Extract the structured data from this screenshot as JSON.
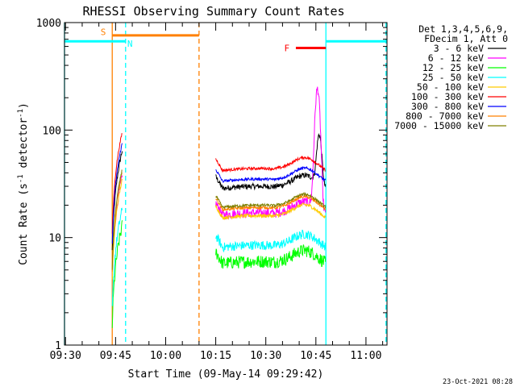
{
  "chart_data": {
    "type": "line",
    "title": "RHESSI Observing Summary Count Rates",
    "xlabel": "Start Time (09-May-14 09:29:42)",
    "ylabel_main": "Count Rate (s",
    "ylabel_sup1": "-1",
    "ylabel_mid": " detector",
    "ylabel_sup2": "-1",
    "ylabel_end": ")",
    "ylog": true,
    "xlim_min": [
      -0.3,
      96.3
    ],
    "ylim": [
      1,
      1000
    ],
    "x_ticks": [
      {
        "min": 0,
        "label": "09:30"
      },
      {
        "min": 15,
        "label": "09:45"
      },
      {
        "min": 30,
        "label": "10:00"
      },
      {
        "min": 45,
        "label": "10:15"
      },
      {
        "min": 60,
        "label": "10:30"
      },
      {
        "min": 75,
        "label": "10:45"
      },
      {
        "min": 90,
        "label": "11:00"
      }
    ],
    "y_ticks": [
      {
        "value": 1,
        "label": "1"
      },
      {
        "value": 10,
        "label": "10"
      },
      {
        "value": 100,
        "label": "100"
      },
      {
        "value": 1000,
        "label": "1000"
      }
    ],
    "legend_header": [
      "Det 1,3,4,5,6,9,",
      "FDecim 1, Att 0"
    ],
    "series": [
      {
        "name": "3 - 6 keV",
        "color": "#000000",
        "base": 30,
        "noise": 0.06
      },
      {
        "name": "6 - 12 keV",
        "color": "#ff00ff",
        "base": 17,
        "noise": 0.1
      },
      {
        "name": "12 - 25 keV",
        "color": "#00ff00",
        "base": 6,
        "noise": 0.14
      },
      {
        "name": "25 - 50 keV",
        "color": "#00ffff",
        "base": 8.5,
        "noise": 0.1
      },
      {
        "name": "50 - 100 keV",
        "color": "#ffcc00",
        "base": 16,
        "noise": 0.04
      },
      {
        "name": "100 - 300 keV",
        "color": "#ff0000",
        "base": 44,
        "noise": 0.03
      },
      {
        "name": "300 - 800 keV",
        "color": "#0000ff",
        "base": 35,
        "noise": 0.03
      },
      {
        "name": "800 - 7000 keV",
        "color": "#ff8000",
        "base": 19,
        "noise": 0.03
      },
      {
        "name": "7000 - 15000 keV",
        "color": "#808000",
        "base": 20,
        "noise": 0.03
      }
    ],
    "data_segments_min": [
      [
        14,
        17
      ],
      [
        45,
        78
      ]
    ],
    "night_bars": [
      {
        "start_min": -0.3,
        "end_min": 18,
        "y": 670,
        "color": "#00ffff"
      },
      {
        "start_min": 78,
        "end_min": 96.3,
        "y": 670,
        "color": "#00ffff"
      }
    ],
    "saa_bar": {
      "start_min": 14,
      "end_min": 40,
      "y": 760,
      "color": "#ff8000"
    },
    "flare_bar": {
      "start_min": 69,
      "end_min": 78,
      "y": 580,
      "color": "#ff0000"
    },
    "annotations": [
      {
        "text": "S",
        "min": 10.5,
        "y": 820,
        "color": "#ff8000"
      },
      {
        "text": "N",
        "min": 18.5,
        "y": 640,
        "color": "#00ffff"
      },
      {
        "text": "F",
        "min": 65.5,
        "y": 580,
        "color": "#ff0000"
      }
    ],
    "vlines": [
      {
        "min": -0.3,
        "color": "#00ffff",
        "dashed": false
      },
      {
        "min": 14,
        "color": "#ff8000",
        "dashed": false
      },
      {
        "min": 18,
        "color": "#00ffff",
        "dashed": true
      },
      {
        "min": 40,
        "color": "#ff8000",
        "dashed": true
      },
      {
        "min": 78,
        "color": "#00ffff",
        "dashed": false
      },
      {
        "min": 96,
        "color": "#00ffff",
        "dashed": true
      }
    ],
    "flare_peaks": [
      {
        "series": "6 - 12 keV",
        "peak_min": 75.5,
        "peak_value": 220
      },
      {
        "series": "3 - 6 keV",
        "peak_min": 76,
        "peak_value": 85
      }
    ]
  },
  "footer_timestamp": "23-Oct-2021 08:28"
}
